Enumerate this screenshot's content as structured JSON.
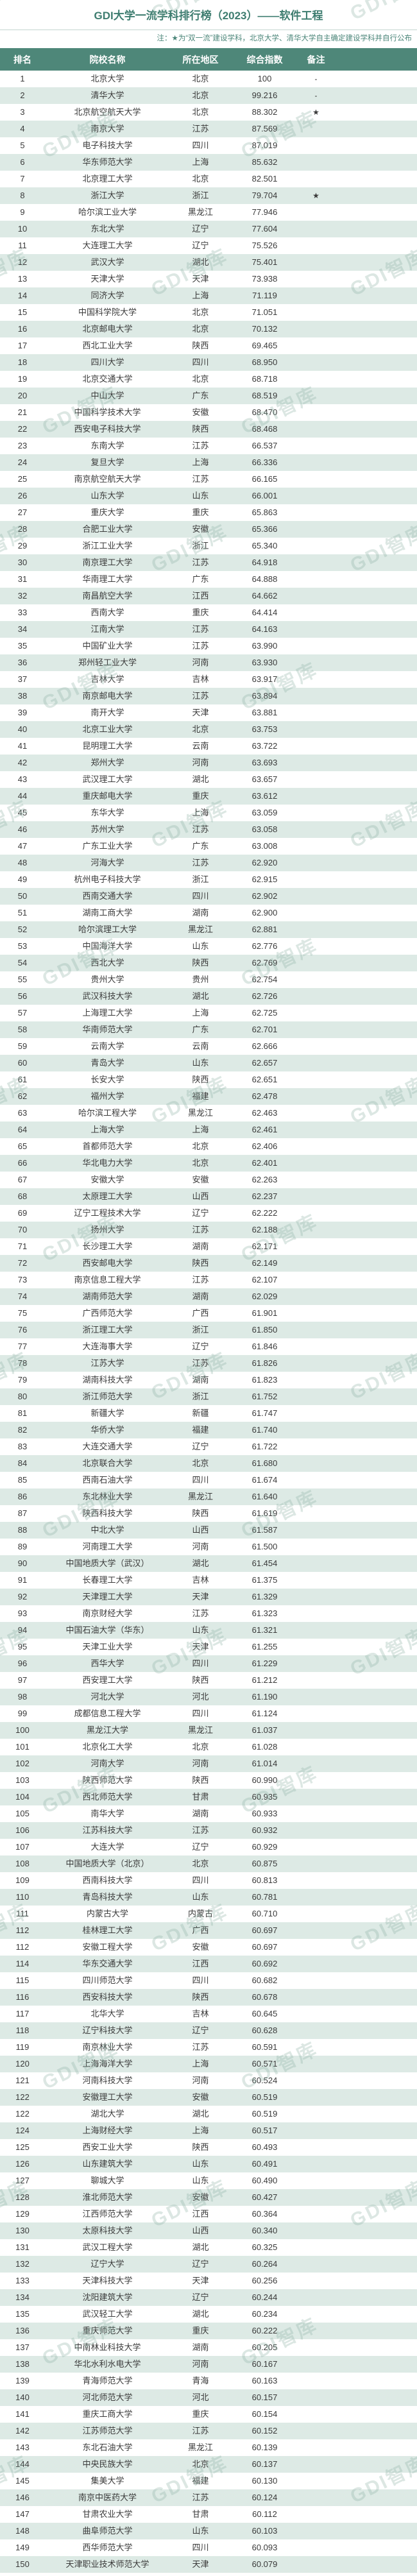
{
  "page": {
    "title": "GDI大学一流学科排行榜（2023）——软件工程",
    "note": "注：★为“双一流”建设学科，北京大学、清华大学自主确定建设学科并自行公布"
  },
  "watermark": {
    "text": "GDI智库"
  },
  "colors": {
    "header_bg": "#4e8779",
    "stripe": "#ddeae5",
    "title": "#3e7d70",
    "note": "#4a8578",
    "body_text": "#3a3a3a"
  },
  "table": {
    "columns": [
      "排名",
      "院校名称",
      "所在地区",
      "综合指数",
      "备注"
    ],
    "rows": [
      [
        "1",
        "北京大学",
        "北京",
        "100",
        "-"
      ],
      [
        "2",
        "清华大学",
        "北京",
        "99.216",
        "-"
      ],
      [
        "3",
        "北京航空航天大学",
        "北京",
        "88.302",
        "★"
      ],
      [
        "4",
        "南京大学",
        "江苏",
        "87.569",
        ""
      ],
      [
        "5",
        "电子科技大学",
        "四川",
        "87.019",
        ""
      ],
      [
        "6",
        "华东师范大学",
        "上海",
        "85.632",
        ""
      ],
      [
        "7",
        "北京理工大学",
        "北京",
        "82.501",
        ""
      ],
      [
        "8",
        "浙江大学",
        "浙江",
        "79.704",
        "★"
      ],
      [
        "9",
        "哈尔滨工业大学",
        "黑龙江",
        "77.946",
        ""
      ],
      [
        "10",
        "东北大学",
        "辽宁",
        "77.604",
        ""
      ],
      [
        "11",
        "大连理工大学",
        "辽宁",
        "75.526",
        ""
      ],
      [
        "12",
        "武汉大学",
        "湖北",
        "75.401",
        ""
      ],
      [
        "13",
        "天津大学",
        "天津",
        "73.938",
        ""
      ],
      [
        "14",
        "同济大学",
        "上海",
        "71.119",
        ""
      ],
      [
        "15",
        "中国科学院大学",
        "北京",
        "71.051",
        ""
      ],
      [
        "16",
        "北京邮电大学",
        "北京",
        "70.132",
        ""
      ],
      [
        "17",
        "西北工业大学",
        "陕西",
        "69.465",
        ""
      ],
      [
        "18",
        "四川大学",
        "四川",
        "68.950",
        ""
      ],
      [
        "19",
        "北京交通大学",
        "北京",
        "68.718",
        ""
      ],
      [
        "20",
        "中山大学",
        "广东",
        "68.519",
        ""
      ],
      [
        "21",
        "中国科学技术大学",
        "安徽",
        "68.470",
        ""
      ],
      [
        "22",
        "西安电子科技大学",
        "陕西",
        "68.468",
        ""
      ],
      [
        "23",
        "东南大学",
        "江苏",
        "66.537",
        ""
      ],
      [
        "24",
        "复旦大学",
        "上海",
        "66.336",
        ""
      ],
      [
        "25",
        "南京航空航天大学",
        "江苏",
        "66.165",
        ""
      ],
      [
        "26",
        "山东大学",
        "山东",
        "66.001",
        ""
      ],
      [
        "27",
        "重庆大学",
        "重庆",
        "65.863",
        ""
      ],
      [
        "28",
        "合肥工业大学",
        "安徽",
        "65.366",
        ""
      ],
      [
        "29",
        "浙江工业大学",
        "浙江",
        "65.340",
        ""
      ],
      [
        "30",
        "南京理工大学",
        "江苏",
        "64.918",
        ""
      ],
      [
        "31",
        "华南理工大学",
        "广东",
        "64.888",
        ""
      ],
      [
        "32",
        "南昌航空大学",
        "江西",
        "64.662",
        ""
      ],
      [
        "33",
        "西南大学",
        "重庆",
        "64.414",
        ""
      ],
      [
        "34",
        "江南大学",
        "江苏",
        "64.163",
        ""
      ],
      [
        "35",
        "中国矿业大学",
        "江苏",
        "63.990",
        ""
      ],
      [
        "36",
        "郑州轻工业大学",
        "河南",
        "63.930",
        ""
      ],
      [
        "37",
        "吉林大学",
        "吉林",
        "63.917",
        ""
      ],
      [
        "38",
        "南京邮电大学",
        "江苏",
        "63.894",
        ""
      ],
      [
        "39",
        "南开大学",
        "天津",
        "63.881",
        ""
      ],
      [
        "40",
        "北京工业大学",
        "北京",
        "63.753",
        ""
      ],
      [
        "41",
        "昆明理工大学",
        "云南",
        "63.722",
        ""
      ],
      [
        "42",
        "郑州大学",
        "河南",
        "63.693",
        ""
      ],
      [
        "43",
        "武汉理工大学",
        "湖北",
        "63.657",
        ""
      ],
      [
        "44",
        "重庆邮电大学",
        "重庆",
        "63.612",
        ""
      ],
      [
        "45",
        "东华大学",
        "上海",
        "63.059",
        ""
      ],
      [
        "46",
        "苏州大学",
        "江苏",
        "63.058",
        ""
      ],
      [
        "47",
        "广东工业大学",
        "广东",
        "63.008",
        ""
      ],
      [
        "48",
        "河海大学",
        "江苏",
        "62.920",
        ""
      ],
      [
        "49",
        "杭州电子科技大学",
        "浙江",
        "62.915",
        ""
      ],
      [
        "50",
        "西南交通大学",
        "四川",
        "62.902",
        ""
      ],
      [
        "51",
        "湖南工商大学",
        "湖南",
        "62.900",
        ""
      ],
      [
        "52",
        "哈尔滨理工大学",
        "黑龙江",
        "62.881",
        ""
      ],
      [
        "53",
        "中国海洋大学",
        "山东",
        "62.776",
        ""
      ],
      [
        "54",
        "西北大学",
        "陕西",
        "62.769",
        ""
      ],
      [
        "55",
        "贵州大学",
        "贵州",
        "62.754",
        ""
      ],
      [
        "56",
        "武汉科技大学",
        "湖北",
        "62.726",
        ""
      ],
      [
        "57",
        "上海理工大学",
        "上海",
        "62.725",
        ""
      ],
      [
        "58",
        "华南师范大学",
        "广东",
        "62.701",
        ""
      ],
      [
        "59",
        "云南大学",
        "云南",
        "62.666",
        ""
      ],
      [
        "60",
        "青岛大学",
        "山东",
        "62.657",
        ""
      ],
      [
        "61",
        "长安大学",
        "陕西",
        "62.651",
        ""
      ],
      [
        "62",
        "福州大学",
        "福建",
        "62.478",
        ""
      ],
      [
        "63",
        "哈尔滨工程大学",
        "黑龙江",
        "62.463",
        ""
      ],
      [
        "64",
        "上海大学",
        "上海",
        "62.461",
        ""
      ],
      [
        "65",
        "首都师范大学",
        "北京",
        "62.406",
        ""
      ],
      [
        "66",
        "华北电力大学",
        "北京",
        "62.401",
        ""
      ],
      [
        "67",
        "安徽大学",
        "安徽",
        "62.263",
        ""
      ],
      [
        "68",
        "太原理工大学",
        "山西",
        "62.237",
        ""
      ],
      [
        "69",
        "辽宁工程技术大学",
        "辽宁",
        "62.222",
        ""
      ],
      [
        "70",
        "扬州大学",
        "江苏",
        "62.188",
        ""
      ],
      [
        "71",
        "长沙理工大学",
        "湖南",
        "62.171",
        ""
      ],
      [
        "72",
        "西安邮电大学",
        "陕西",
        "62.149",
        ""
      ],
      [
        "73",
        "南京信息工程大学",
        "江苏",
        "62.107",
        ""
      ],
      [
        "74",
        "湖南师范大学",
        "湖南",
        "62.029",
        ""
      ],
      [
        "75",
        "广西师范大学",
        "广西",
        "61.901",
        ""
      ],
      [
        "76",
        "浙江理工大学",
        "浙江",
        "61.850",
        ""
      ],
      [
        "77",
        "大连海事大学",
        "辽宁",
        "61.846",
        ""
      ],
      [
        "78",
        "江苏大学",
        "江苏",
        "61.826",
        ""
      ],
      [
        "79",
        "湖南科技大学",
        "湖南",
        "61.823",
        ""
      ],
      [
        "80",
        "浙江师范大学",
        "浙江",
        "61.752",
        ""
      ],
      [
        "81",
        "新疆大学",
        "新疆",
        "61.747",
        ""
      ],
      [
        "82",
        "华侨大学",
        "福建",
        "61.740",
        ""
      ],
      [
        "83",
        "大连交通大学",
        "辽宁",
        "61.722",
        ""
      ],
      [
        "84",
        "北京联合大学",
        "北京",
        "61.680",
        ""
      ],
      [
        "85",
        "西南石油大学",
        "四川",
        "61.674",
        ""
      ],
      [
        "86",
        "东北林业大学",
        "黑龙江",
        "61.640",
        ""
      ],
      [
        "87",
        "陕西科技大学",
        "陕西",
        "61.619",
        ""
      ],
      [
        "88",
        "中北大学",
        "山西",
        "61.587",
        ""
      ],
      [
        "89",
        "河南理工大学",
        "河南",
        "61.500",
        ""
      ],
      [
        "90",
        "中国地质大学（武汉）",
        "湖北",
        "61.454",
        ""
      ],
      [
        "91",
        "长春理工大学",
        "吉林",
        "61.375",
        ""
      ],
      [
        "92",
        "天津理工大学",
        "天津",
        "61.329",
        ""
      ],
      [
        "93",
        "南京财经大学",
        "江苏",
        "61.323",
        ""
      ],
      [
        "94",
        "中国石油大学（华东）",
        "山东",
        "61.321",
        ""
      ],
      [
        "95",
        "天津工业大学",
        "天津",
        "61.255",
        ""
      ],
      [
        "96",
        "西华大学",
        "四川",
        "61.229",
        ""
      ],
      [
        "97",
        "西安理工大学",
        "陕西",
        "61.212",
        ""
      ],
      [
        "98",
        "河北大学",
        "河北",
        "61.190",
        ""
      ],
      [
        "99",
        "成都信息工程大学",
        "四川",
        "61.124",
        ""
      ],
      [
        "100",
        "黑龙江大学",
        "黑龙江",
        "61.037",
        ""
      ],
      [
        "101",
        "北京化工大学",
        "北京",
        "61.028",
        ""
      ],
      [
        "102",
        "河南大学",
        "河南",
        "61.014",
        ""
      ],
      [
        "103",
        "陕西师范大学",
        "陕西",
        "60.990",
        ""
      ],
      [
        "104",
        "西北师范大学",
        "甘肃",
        "60.935",
        ""
      ],
      [
        "105",
        "南华大学",
        "湖南",
        "60.933",
        ""
      ],
      [
        "106",
        "江苏科技大学",
        "江苏",
        "60.932",
        ""
      ],
      [
        "107",
        "大连大学",
        "辽宁",
        "60.929",
        ""
      ],
      [
        "108",
        "中国地质大学（北京）",
        "北京",
        "60.875",
        ""
      ],
      [
        "109",
        "西南科技大学",
        "四川",
        "60.813",
        ""
      ],
      [
        "110",
        "青岛科技大学",
        "山东",
        "60.781",
        ""
      ],
      [
        "111",
        "内蒙古大学",
        "内蒙古",
        "60.710",
        ""
      ],
      [
        "112",
        "桂林理工大学",
        "广西",
        "60.697",
        ""
      ],
      [
        "112",
        "安徽工程大学",
        "安徽",
        "60.697",
        ""
      ],
      [
        "114",
        "华东交通大学",
        "江西",
        "60.692",
        ""
      ],
      [
        "115",
        "四川师范大学",
        "四川",
        "60.682",
        ""
      ],
      [
        "116",
        "西安科技大学",
        "陕西",
        "60.678",
        ""
      ],
      [
        "117",
        "北华大学",
        "吉林",
        "60.645",
        ""
      ],
      [
        "118",
        "辽宁科技大学",
        "辽宁",
        "60.628",
        ""
      ],
      [
        "119",
        "南京林业大学",
        "江苏",
        "60.591",
        ""
      ],
      [
        "120",
        "上海海洋大学",
        "上海",
        "60.571",
        ""
      ],
      [
        "121",
        "河南科技大学",
        "河南",
        "60.524",
        ""
      ],
      [
        "122",
        "安徽理工大学",
        "安徽",
        "60.519",
        ""
      ],
      [
        "122",
        "湖北大学",
        "湖北",
        "60.519",
        ""
      ],
      [
        "124",
        "上海财经大学",
        "上海",
        "60.517",
        ""
      ],
      [
        "125",
        "西安工业大学",
        "陕西",
        "60.493",
        ""
      ],
      [
        "126",
        "山东建筑大学",
        "山东",
        "60.491",
        ""
      ],
      [
        "127",
        "聊城大学",
        "山东",
        "60.490",
        ""
      ],
      [
        "128",
        "淮北师范大学",
        "安徽",
        "60.427",
        ""
      ],
      [
        "129",
        "江西师范大学",
        "江西",
        "60.364",
        ""
      ],
      [
        "130",
        "太原科技大学",
        "山西",
        "60.340",
        ""
      ],
      [
        "131",
        "武汉工程大学",
        "湖北",
        "60.325",
        ""
      ],
      [
        "132",
        "辽宁大学",
        "辽宁",
        "60.264",
        ""
      ],
      [
        "133",
        "天津科技大学",
        "天津",
        "60.256",
        ""
      ],
      [
        "134",
        "沈阳建筑大学",
        "辽宁",
        "60.244",
        ""
      ],
      [
        "135",
        "武汉轻工大学",
        "湖北",
        "60.234",
        ""
      ],
      [
        "136",
        "重庆师范大学",
        "重庆",
        "60.222",
        ""
      ],
      [
        "137",
        "中南林业科技大学",
        "湖南",
        "60.205",
        ""
      ],
      [
        "138",
        "华北水利水电大学",
        "河南",
        "60.167",
        ""
      ],
      [
        "139",
        "青海师范大学",
        "青海",
        "60.163",
        ""
      ],
      [
        "140",
        "河北师范大学",
        "河北",
        "60.157",
        ""
      ],
      [
        "141",
        "重庆工商大学",
        "重庆",
        "60.154",
        ""
      ],
      [
        "142",
        "江苏师范大学",
        "江苏",
        "60.152",
        ""
      ],
      [
        "143",
        "东北石油大学",
        "黑龙江",
        "60.139",
        ""
      ],
      [
        "144",
        "中央民族大学",
        "北京",
        "60.137",
        ""
      ],
      [
        "145",
        "集美大学",
        "福建",
        "60.130",
        ""
      ],
      [
        "146",
        "南京中医药大学",
        "江苏",
        "60.124",
        ""
      ],
      [
        "147",
        "甘肃农业大学",
        "甘肃",
        "60.112",
        ""
      ],
      [
        "148",
        "曲阜师范大学",
        "山东",
        "60.103",
        ""
      ],
      [
        "149",
        "西华师范大学",
        "四川",
        "60.093",
        ""
      ],
      [
        "150",
        "天津职业技术师范大学",
        "天津",
        "60.079",
        ""
      ]
    ]
  }
}
